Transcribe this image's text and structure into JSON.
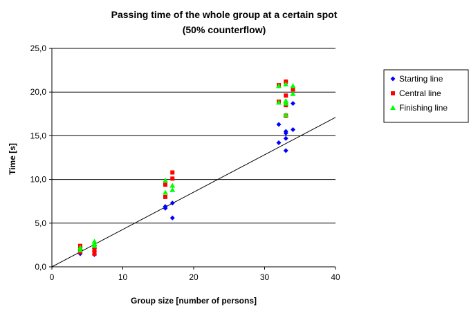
{
  "chart_data": {
    "type": "scatter",
    "title_lines": [
      "Passing time of the whole group at a certain spot",
      "(50% counterflow)"
    ],
    "xlabel": "Group size [number of persons]",
    "ylabel": "Time [s]",
    "xlim": [
      0,
      40
    ],
    "ylim": [
      0,
      25
    ],
    "x_ticks": [
      0,
      10,
      20,
      30,
      40
    ],
    "x_tick_labels": [
      "0",
      "10",
      "20",
      "30",
      "40"
    ],
    "y_ticks": [
      0,
      5,
      10,
      15,
      20,
      25
    ],
    "y_tick_labels": [
      "0,0",
      "5,0",
      "10,0",
      "15,0",
      "20,0",
      "25,0"
    ],
    "grid": "horizontal",
    "legend_position": "right",
    "series": [
      {
        "name": "Starting line",
        "color": "#0000ff",
        "marker": "diamond",
        "points": [
          [
            4,
            1.5
          ],
          [
            4,
            2.0
          ],
          [
            4,
            2.2
          ],
          [
            6,
            1.4
          ],
          [
            6,
            1.8
          ],
          [
            6,
            2.1
          ],
          [
            6,
            2.5
          ],
          [
            16,
            6.7
          ],
          [
            16,
            6.9
          ],
          [
            17,
            7.3
          ],
          [
            17,
            5.6
          ],
          [
            32,
            16.3
          ],
          [
            32,
            14.2
          ],
          [
            33,
            15.3
          ],
          [
            33,
            15.5
          ],
          [
            33,
            14.7
          ],
          [
            33,
            13.3
          ],
          [
            34,
            18.7
          ],
          [
            34,
            15.7
          ]
        ]
      },
      {
        "name": "Central line",
        "color": "#ff0000",
        "marker": "square",
        "points": [
          [
            4,
            1.7
          ],
          [
            4,
            2.0
          ],
          [
            4,
            2.4
          ],
          [
            6,
            1.5
          ],
          [
            6,
            1.8
          ],
          [
            6,
            2.2
          ],
          [
            16,
            8.0
          ],
          [
            16,
            9.4
          ],
          [
            17,
            10.1
          ],
          [
            17,
            10.8
          ],
          [
            32,
            20.8
          ],
          [
            32,
            18.9
          ],
          [
            33,
            21.2
          ],
          [
            33,
            19.6
          ],
          [
            33,
            18.5
          ],
          [
            33,
            17.3
          ],
          [
            34,
            20.3
          ]
        ]
      },
      {
        "name": "Finishing line",
        "color": "#00ff00",
        "marker": "triangle",
        "points": [
          [
            4,
            1.9
          ],
          [
            4,
            2.2
          ],
          [
            6,
            2.6
          ],
          [
            6,
            2.9
          ],
          [
            6,
            2.4
          ],
          [
            16,
            9.9
          ],
          [
            16,
            8.5
          ],
          [
            17,
            9.3
          ],
          [
            17,
            8.8
          ],
          [
            32,
            20.7
          ],
          [
            32,
            18.8
          ],
          [
            33,
            20.9
          ],
          [
            33,
            19.0
          ],
          [
            33,
            18.7
          ],
          [
            33,
            17.4
          ],
          [
            34,
            20.7
          ],
          [
            34,
            19.8
          ]
        ]
      }
    ],
    "trendline": {
      "color": "#000000",
      "x": [
        0,
        40
      ],
      "y": [
        0,
        17.1
      ]
    }
  }
}
